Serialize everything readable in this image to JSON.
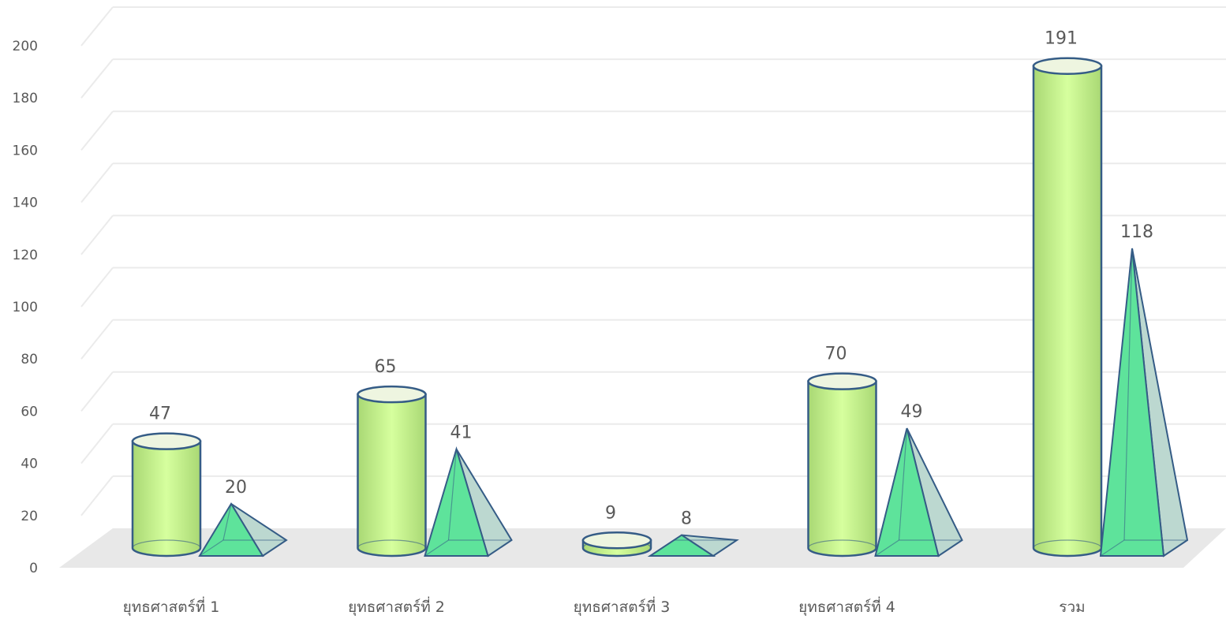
{
  "chart_data": {
    "type": "bar",
    "style": "3d-cylinder-and-pyramid",
    "categories": [
      "ยุทธศาสตร์ที่ 1",
      "ยุทธศาสตร์ที่ 2",
      "ยุทธศาสตร์ที่ 3",
      "ยุทธศาสตร์ที่ 4",
      "รวม"
    ],
    "series": [
      {
        "shape": "cylinder",
        "values": [
          47,
          65,
          9,
          70,
          191
        ]
      },
      {
        "shape": "pyramid",
        "values": [
          20,
          41,
          8,
          49,
          118
        ]
      }
    ],
    "data_labels": [
      [
        "47",
        "65",
        "9",
        "70",
        "191"
      ],
      [
        "20",
        "41",
        "8",
        "49",
        "118"
      ]
    ],
    "y_ticks": [
      "0",
      "20",
      "40",
      "60",
      "80",
      "100",
      "120",
      "140",
      "160",
      "180",
      "200"
    ],
    "ylim": [
      0,
      200
    ],
    "grid": true,
    "legend": "none",
    "colors": {
      "cylinder_fill": "#c9f58f",
      "cylinder_edge": "#9fcf70",
      "pyramid_fill": "#5ee39b",
      "pyramid_side": "#bcd8d0",
      "outline": "#355c86",
      "floor": "#e8e8e8",
      "grid": "#ebebeb",
      "text": "#595959"
    }
  }
}
